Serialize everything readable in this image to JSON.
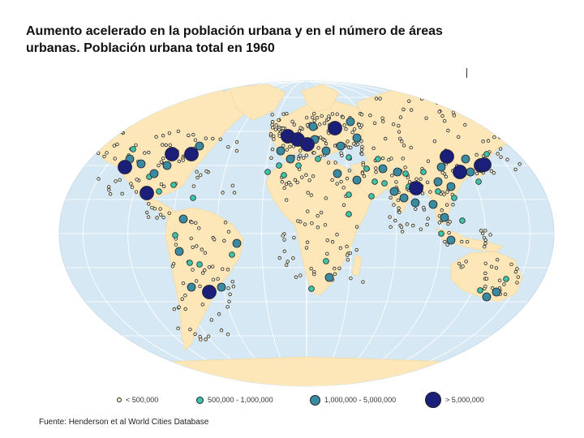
{
  "title": {
    "line1": "Aumento acelerado en la población urbana y en el número de áreas",
    "line2": "urbanas. Población urbana total en 1960"
  },
  "map": {
    "ocean_color": "#d6e8f3",
    "land_color": "#fde7b8",
    "graticule_color": "#ffffff"
  },
  "legend": [
    {
      "label": "< 500,000",
      "color": "#f8f0cf",
      "class": "small"
    },
    {
      "label": "500,000 - 1,000,000",
      "color": "#3fc3a9",
      "class": "medium"
    },
    {
      "label": "1,000,000 - 5,000,000",
      "color": "#3a8aa2",
      "class": "large"
    },
    {
      "label": "> 5,000,000",
      "color": "#1c1f7a",
      "class": "xlarge"
    }
  ],
  "source": "Fuente: Henderson et al World Cities Database"
}
